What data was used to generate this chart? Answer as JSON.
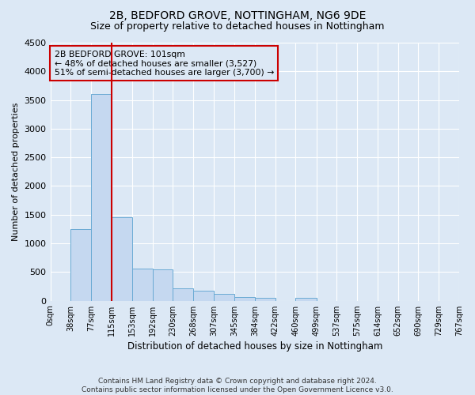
{
  "title": "2B, BEDFORD GROVE, NOTTINGHAM, NG6 9DE",
  "subtitle": "Size of property relative to detached houses in Nottingham",
  "xlabel": "Distribution of detached houses by size in Nottingham",
  "ylabel": "Number of detached properties",
  "footer1": "Contains HM Land Registry data © Crown copyright and database right 2024.",
  "footer2": "Contains public sector information licensed under the Open Government Licence v3.0.",
  "bin_edges": [
    0,
    38,
    77,
    115,
    153,
    192,
    230,
    268,
    307,
    345,
    384,
    422,
    460,
    499,
    537,
    575,
    614,
    652,
    690,
    729,
    767
  ],
  "bin_labels": [
    "0sqm",
    "38sqm",
    "77sqm",
    "115sqm",
    "153sqm",
    "192sqm",
    "230sqm",
    "268sqm",
    "307sqm",
    "345sqm",
    "384sqm",
    "422sqm",
    "460sqm",
    "499sqm",
    "537sqm",
    "575sqm",
    "614sqm",
    "652sqm",
    "690sqm",
    "729sqm",
    "767sqm"
  ],
  "bar_heights": [
    0,
    1250,
    3600,
    1450,
    560,
    550,
    220,
    175,
    115,
    70,
    45,
    0,
    45,
    0,
    0,
    0,
    0,
    0,
    0,
    0
  ],
  "bar_color": "#c5d8f0",
  "bar_edge_color": "#6aaad4",
  "ylim": [
    0,
    4500
  ],
  "yticks": [
    0,
    500,
    1000,
    1500,
    2000,
    2500,
    3000,
    3500,
    4000,
    4500
  ],
  "property_line_x": 115,
  "property_line_color": "#cc0000",
  "annotation_line1": "2B BEDFORD GROVE: 101sqm",
  "annotation_line2": "← 48% of detached houses are smaller (3,527)",
  "annotation_line3": "51% of semi-detached houses are larger (3,700) →",
  "annotation_box_color": "#cc0000",
  "background_color": "#dce8f5",
  "grid_color": "#ffffff",
  "title_fontsize": 10,
  "subtitle_fontsize": 9
}
